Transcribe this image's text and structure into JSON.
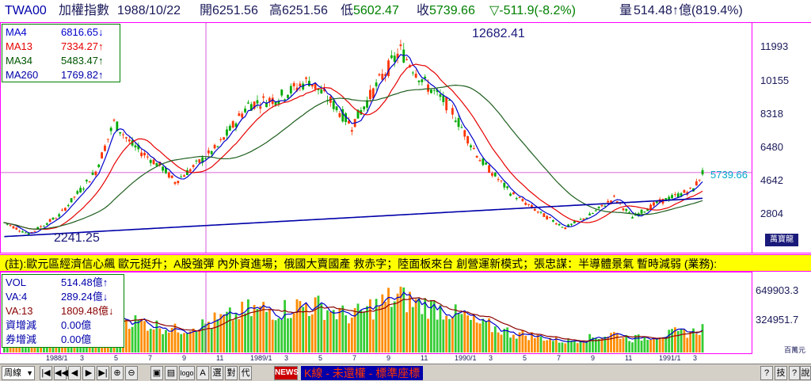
{
  "header": {
    "symbol": "TWA00",
    "name": "加權指數",
    "date": "1988/10/22",
    "open_label": "開",
    "open": "6251.56",
    "high_label": "高",
    "high": "6251.56",
    "low_label": "低",
    "low": "5602.47",
    "close_label": "收",
    "close": "5739.66",
    "change": "▽-511.9(-8.2%)",
    "volume_label": "量",
    "volume": "514.48↑億(819.4%)"
  },
  "ma_legend": [
    {
      "label": "MA4",
      "value": "6816.65↓",
      "color": "#0000cc"
    },
    {
      "label": "MA13",
      "value": "7334.27↑",
      "color": "#e60000"
    },
    {
      "label": "MA34",
      "value": "5483.47↑",
      "color": "#005500"
    },
    {
      "label": "MA260",
      "value": "1769.82↑",
      "color": "#0000aa"
    }
  ],
  "price_annotations": {
    "peak": "12682.41",
    "trough": "2241.25",
    "last": "5739.66"
  },
  "price_axis": [
    "11993",
    "10155",
    "8318",
    "6480",
    "4642",
    "2804"
  ],
  "wan_badge": "萬寶龍",
  "news_text": "(註):歐元區經濟信心飆 歐元挺升；A股強彈 內外資進場；俄國大賣國產 救赤字；陸面板來台 創營運新模式；張忠謀：半導體景氣 暫時減弱 (業務):",
  "vol_legend": [
    {
      "label": "VOL",
      "value": "514.48億↑",
      "color": "#0000aa"
    },
    {
      "label": "VA:4",
      "value": "289.24億↓",
      "color": "#0000aa"
    },
    {
      "label": "VA:13",
      "value": "1809.48億↓",
      "color": "#8b0000"
    },
    {
      "label": "資增減",
      "value": "0.00億",
      "color": "#0000aa"
    },
    {
      "label": "券增減",
      "value": "0.00億",
      "color": "#0000aa"
    }
  ],
  "vol_axis": [
    "649903.3",
    "324951.7"
  ],
  "vol_unit": "百萬元",
  "x_ticks": [
    "1988/1",
    "3",
    "5",
    "7",
    "9",
    "11",
    "1989/1",
    "3",
    "5",
    "7",
    "9",
    "11",
    "1990/1",
    "3",
    "5",
    "7",
    "9",
    "11",
    "1991/1",
    "3"
  ],
  "toolbar": {
    "period": "周線",
    "news_btn": "NEWS",
    "k_text": "K線 - 未還權 - 標準座標",
    "btns": [
      "⊕",
      "⊖",
      "▣",
      "▤",
      "logo",
      "A",
      "選",
      "對",
      "代"
    ],
    "right_btns": [
      "?",
      "技",
      "?",
      "說"
    ]
  },
  "colors": {
    "up": "#ff3300",
    "down": "#00aa00",
    "ma4": "#0000cc",
    "ma13": "#e60000",
    "ma34": "#1f5f1f",
    "ma260": "#0000aa",
    "vol_up": "#ff8c00",
    "vol_down": "#33cc33"
  }
}
